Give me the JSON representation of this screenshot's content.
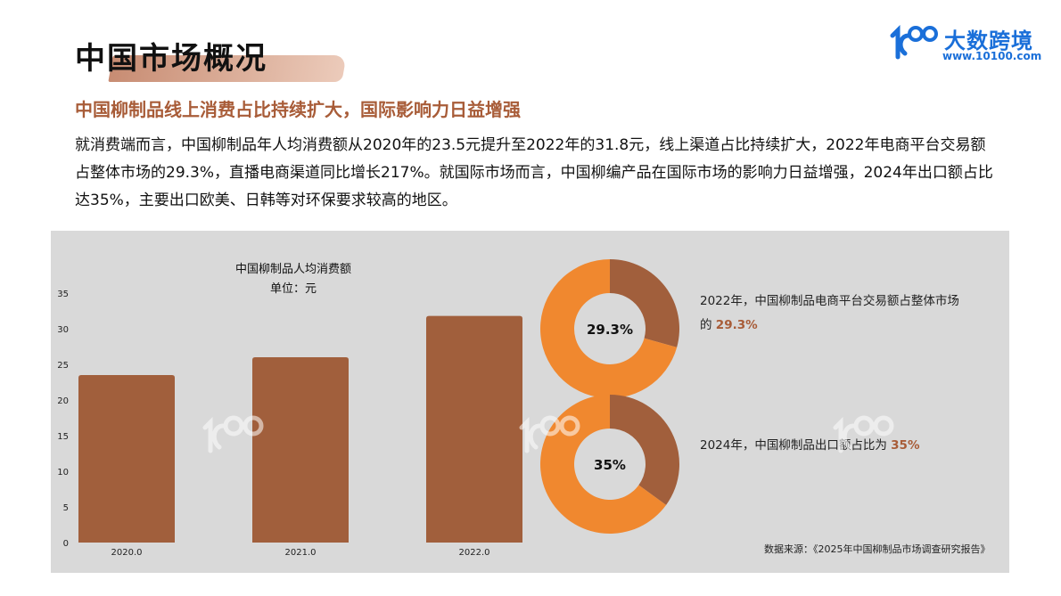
{
  "header": {
    "title": "中国市场概况",
    "logo_brand": "大数跨境",
    "logo_url": "www.10100.com"
  },
  "subtitle": "中国柳制品线上消费占比持续扩大，国际影响力日益增强",
  "body": "就消费端而言，中国柳制品年人均消费额从2020年的23.5元提升至2022年的31.8元，线上渠道占比持续扩大，2022年电商平台交易额占整体市场的29.3%，直播电商渠道同比增长217%。就国际市场而言，中国柳编产品在国际市场的影响力日益增强，2024年出口额占比达35%，主要出口欧美、日韩等对环保要求较高的地区。",
  "chart_data": [
    {
      "type": "bar",
      "title": "中国柳制品人均消费额",
      "subtitle": "单位：元",
      "categories": [
        "2020.0",
        "2021.0",
        "2022.0"
      ],
      "values": [
        23.5,
        26,
        31.8
      ],
      "yticks": [
        "0",
        "5",
        "10",
        "15",
        "20",
        "25",
        "30",
        "35"
      ],
      "ylim": [
        0,
        35
      ],
      "grid": false,
      "bar_color": "#a15f3c"
    },
    {
      "type": "pie",
      "donut": true,
      "center_label": "29.3%",
      "values": [
        29.3,
        70.7
      ],
      "colors": [
        "#a15f3c",
        "#f0882f"
      ],
      "annotation": {
        "text_line1": "2022年，中国柳制品电商平台交易额占整体市场",
        "text_line2": "的",
        "highlight": "29.3%"
      }
    },
    {
      "type": "pie",
      "donut": true,
      "center_label": "35%",
      "values": [
        35,
        65
      ],
      "colors": [
        "#a15f3c",
        "#f0882f"
      ],
      "annotation": {
        "text": "2024年，中国柳制品出口额占比为",
        "highlight": "35%"
      }
    }
  ],
  "source": "数据来源：《2025年中国柳制品市场调查研究报告》"
}
